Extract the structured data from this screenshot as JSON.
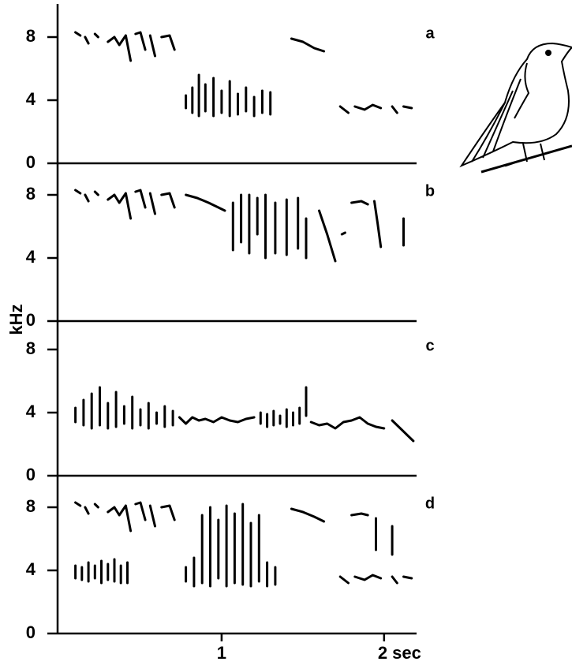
{
  "ylabel": "kHz",
  "chart_data": [
    {
      "type": "line",
      "label": "a",
      "color": "#000000",
      "xlim": [
        0,
        2.2
      ],
      "ylim": [
        0,
        10
      ],
      "yticks": [
        0,
        4,
        8
      ],
      "x": [
        0.1,
        0.13,
        0.13,
        0.16,
        0.18,
        0.18,
        0.22,
        0.24,
        0.24,
        0.3,
        0.34,
        0.37,
        0.41,
        0.44,
        0.44,
        0.47,
        0.5,
        0.53,
        0.53,
        0.56,
        0.59,
        0.59,
        0.63,
        0.68,
        0.71,
        0.71,
        0.78,
        0.78,
        0.78,
        0.82,
        0.82,
        0.82,
        0.86,
        0.86,
        0.86,
        0.9,
        0.9,
        0.9,
        0.95,
        0.95,
        0.95,
        1.0,
        1.0,
        1.0,
        1.05,
        1.05,
        1.05,
        1.1,
        1.1,
        1.1,
        1.15,
        1.15,
        1.15,
        1.2,
        1.2,
        1.2,
        1.25,
        1.25,
        1.25,
        1.3,
        1.3,
        1.3,
        1.43,
        1.5,
        1.57,
        1.63,
        1.63,
        1.73,
        1.78,
        1.78,
        1.82,
        1.88,
        1.93,
        1.98,
        1.98,
        2.05,
        2.08,
        2.08,
        2.12,
        2.17
      ],
      "values": [
        8.3,
        8.1,
        null,
        8.0,
        7.6,
        null,
        8.2,
        8.0,
        null,
        7.7,
        8.0,
        7.5,
        8.1,
        6.5,
        null,
        8.2,
        8.3,
        7.2,
        null,
        8.1,
        6.8,
        null,
        8.0,
        8.1,
        7.2,
        null,
        4.3,
        3.5,
        null,
        4.8,
        3.2,
        null,
        5.6,
        3.0,
        null,
        5.0,
        3.3,
        null,
        5.4,
        3.0,
        null,
        4.6,
        3.2,
        null,
        5.2,
        3.0,
        null,
        4.4,
        3.1,
        null,
        4.8,
        3.3,
        null,
        4.2,
        3.0,
        null,
        4.6,
        3.2,
        null,
        4.5,
        3.1,
        null,
        7.9,
        7.7,
        7.3,
        7.1,
        null,
        3.6,
        3.2,
        null,
        3.6,
        3.4,
        3.7,
        3.5,
        null,
        3.6,
        3.2,
        null,
        3.6,
        3.5
      ]
    },
    {
      "type": "line",
      "label": "b",
      "color": "#000000",
      "xlim": [
        0,
        2.2
      ],
      "ylim": [
        0,
        10
      ],
      "yticks": [
        0,
        4,
        8
      ],
      "x": [
        0.1,
        0.13,
        0.13,
        0.16,
        0.18,
        0.18,
        0.22,
        0.24,
        0.24,
        0.3,
        0.34,
        0.37,
        0.41,
        0.44,
        0.44,
        0.47,
        0.5,
        0.53,
        0.53,
        0.56,
        0.59,
        0.59,
        0.63,
        0.68,
        0.71,
        0.71,
        0.78,
        0.85,
        0.92,
        0.98,
        1.02,
        1.02,
        1.07,
        1.07,
        1.07,
        1.12,
        1.12,
        1.12,
        1.17,
        1.17,
        1.17,
        1.22,
        1.22,
        1.22,
        1.27,
        1.27,
        1.27,
        1.33,
        1.33,
        1.33,
        1.4,
        1.4,
        1.4,
        1.47,
        1.47,
        1.47,
        1.52,
        1.52,
        1.52,
        1.6,
        1.65,
        1.7,
        1.7,
        1.74,
        1.76,
        1.76,
        1.8,
        1.86,
        1.9,
        1.9,
        1.94,
        1.96,
        1.98,
        1.98,
        2.12,
        2.12
      ],
      "values": [
        8.3,
        8.1,
        null,
        8.0,
        7.6,
        null,
        8.2,
        8.0,
        null,
        7.7,
        8.0,
        7.5,
        8.1,
        6.5,
        null,
        8.2,
        8.3,
        7.2,
        null,
        8.1,
        6.8,
        null,
        8.0,
        8.1,
        7.2,
        null,
        8.0,
        7.8,
        7.5,
        7.2,
        7.0,
        null,
        7.5,
        4.5,
        null,
        8.0,
        5.0,
        null,
        8.0,
        4.3,
        null,
        7.8,
        5.5,
        null,
        8.0,
        4.0,
        null,
        7.5,
        4.3,
        null,
        7.7,
        4.2,
        null,
        7.8,
        4.6,
        null,
        6.5,
        4.0,
        null,
        7.0,
        5.5,
        3.8,
        null,
        5.5,
        5.6,
        null,
        7.5,
        7.6,
        7.4,
        null,
        7.6,
        6.2,
        4.7,
        null,
        6.5,
        4.8
      ]
    },
    {
      "type": "line",
      "label": "c",
      "color": "#000000",
      "xlim": [
        0,
        2.2
      ],
      "ylim": [
        0,
        10
      ],
      "yticks": [
        0,
        4,
        8
      ],
      "x": [
        0.1,
        0.1,
        0.1,
        0.15,
        0.15,
        0.15,
        0.2,
        0.2,
        0.2,
        0.25,
        0.25,
        0.25,
        0.3,
        0.3,
        0.3,
        0.35,
        0.35,
        0.35,
        0.4,
        0.4,
        0.4,
        0.45,
        0.45,
        0.45,
        0.5,
        0.5,
        0.5,
        0.55,
        0.55,
        0.55,
        0.6,
        0.6,
        0.6,
        0.65,
        0.65,
        0.65,
        0.7,
        0.7,
        0.7,
        0.74,
        0.78,
        0.82,
        0.86,
        0.9,
        0.95,
        1.0,
        1.05,
        1.1,
        1.15,
        1.2,
        1.2,
        1.24,
        1.24,
        1.24,
        1.28,
        1.28,
        1.28,
        1.32,
        1.32,
        1.32,
        1.36,
        1.36,
        1.36,
        1.4,
        1.4,
        1.4,
        1.44,
        1.44,
        1.44,
        1.48,
        1.48,
        1.48,
        1.52,
        1.52,
        1.52,
        1.55,
        1.6,
        1.65,
        1.7,
        1.75,
        1.8,
        1.85,
        1.9,
        1.95,
        2.0,
        2.0,
        2.05,
        2.1,
        2.15,
        2.18
      ],
      "values": [
        4.3,
        3.4,
        null,
        4.8,
        3.2,
        null,
        5.2,
        3.0,
        null,
        5.6,
        3.2,
        null,
        4.6,
        3.0,
        null,
        5.3,
        3.1,
        null,
        4.4,
        3.3,
        null,
        5.0,
        3.0,
        null,
        4.2,
        3.2,
        null,
        4.6,
        3.0,
        null,
        4.0,
        3.3,
        null,
        4.4,
        3.1,
        null,
        4.1,
        3.2,
        null,
        3.7,
        3.3,
        3.7,
        3.5,
        3.6,
        3.4,
        3.7,
        3.5,
        3.4,
        3.6,
        3.7,
        null,
        4.0,
        3.3,
        null,
        3.9,
        3.1,
        null,
        4.1,
        3.2,
        null,
        3.8,
        3.3,
        null,
        4.2,
        3.1,
        null,
        4.0,
        3.2,
        null,
        4.3,
        3.3,
        null,
        5.6,
        3.8,
        null,
        3.4,
        3.2,
        3.3,
        3.0,
        3.4,
        3.5,
        3.7,
        3.3,
        3.1,
        3.0,
        null,
        3.5,
        3.0,
        2.5,
        2.2
      ]
    },
    {
      "type": "line",
      "label": "d",
      "color": "#000000",
      "xlim": [
        0,
        2.2
      ],
      "ylim": [
        0,
        10
      ],
      "yticks": [
        0,
        4,
        8
      ],
      "xticks": [
        1,
        {
          "value": 2,
          "label": "2 sec"
        }
      ],
      "x": [
        0.1,
        0.13,
        0.13,
        0.16,
        0.18,
        0.18,
        0.22,
        0.24,
        0.24,
        0.3,
        0.34,
        0.37,
        0.41,
        0.44,
        0.44,
        0.47,
        0.5,
        0.53,
        0.53,
        0.56,
        0.59,
        0.59,
        0.63,
        0.68,
        0.71,
        0.71,
        0.1,
        0.1,
        0.1,
        0.14,
        0.14,
        0.14,
        0.18,
        0.18,
        0.18,
        0.22,
        0.22,
        0.22,
        0.26,
        0.26,
        0.26,
        0.3,
        0.3,
        0.3,
        0.34,
        0.34,
        0.34,
        0.38,
        0.38,
        0.38,
        0.42,
        0.42,
        0.42,
        0.78,
        0.78,
        0.78,
        0.83,
        0.83,
        0.83,
        0.88,
        0.88,
        0.88,
        0.93,
        0.93,
        0.93,
        0.98,
        0.98,
        0.98,
        1.03,
        1.03,
        1.03,
        1.08,
        1.08,
        1.08,
        1.13,
        1.13,
        1.13,
        1.18,
        1.18,
        1.18,
        1.23,
        1.23,
        1.23,
        1.28,
        1.28,
        1.28,
        1.33,
        1.33,
        1.33,
        1.43,
        1.5,
        1.57,
        1.63,
        1.63,
        1.8,
        1.86,
        1.9,
        1.9,
        1.95,
        1.95,
        1.95,
        2.05,
        2.05,
        2.05,
        1.73,
        1.78,
        1.78,
        1.82,
        1.88,
        1.93,
        1.98,
        1.98,
        2.05,
        2.08,
        2.08,
        2.12,
        2.17
      ],
      "values": [
        8.3,
        8.1,
        null,
        8.0,
        7.6,
        null,
        8.2,
        8.0,
        null,
        7.7,
        8.0,
        7.5,
        8.1,
        6.5,
        null,
        8.2,
        8.3,
        7.2,
        null,
        8.1,
        6.8,
        null,
        8.0,
        8.1,
        7.2,
        null,
        4.3,
        3.5,
        null,
        4.2,
        3.4,
        null,
        4.5,
        3.3,
        null,
        4.3,
        3.5,
        null,
        4.6,
        3.2,
        null,
        4.4,
        3.4,
        null,
        4.7,
        3.3,
        null,
        4.3,
        3.2,
        null,
        4.5,
        3.2,
        null,
        4.2,
        3.3,
        null,
        4.8,
        3.0,
        null,
        7.5,
        3.2,
        null,
        8.0,
        3.0,
        null,
        7.2,
        3.5,
        null,
        8.1,
        3.0,
        null,
        7.6,
        3.2,
        null,
        8.2,
        3.1,
        null,
        7.0,
        3.0,
        null,
        7.5,
        3.3,
        null,
        4.5,
        3.0,
        null,
        4.2,
        3.1,
        null,
        7.9,
        7.7,
        7.4,
        7.1,
        null,
        7.5,
        7.6,
        7.5,
        null,
        7.3,
        5.3,
        null,
        6.8,
        5.0,
        null,
        3.6,
        3.2,
        null,
        3.6,
        3.4,
        3.7,
        3.5,
        null,
        3.6,
        3.2,
        null,
        3.6,
        3.5
      ]
    }
  ]
}
